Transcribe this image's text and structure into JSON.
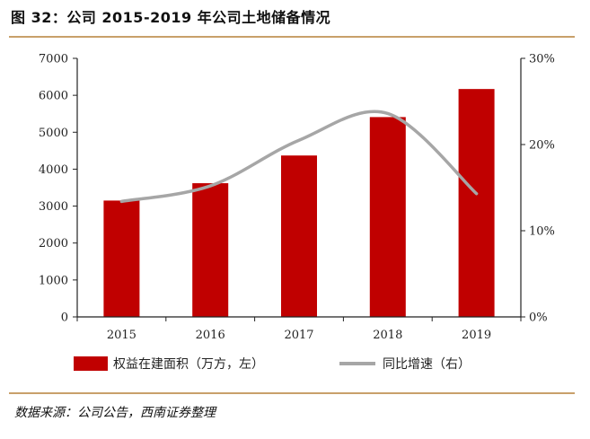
{
  "header": {
    "title": "图 32：公司 2015-2019 年公司土地储备情况"
  },
  "footer": {
    "source": "数据来源：公司公告，西南证券整理"
  },
  "colors": {
    "bar": "#c00000",
    "line": "#a6a6a6",
    "rule": "#c8a06a"
  },
  "chart_data": {
    "type": "bar",
    "title": "",
    "categories": [
      "2015",
      "2016",
      "2017",
      "2018",
      "2019"
    ],
    "series": [
      {
        "name": "权益在建面积（万方，左）",
        "type": "bar",
        "axis": "left",
        "values": [
          3150,
          3620,
          4370,
          5410,
          6170
        ]
      },
      {
        "name": "同比增速（右）",
        "type": "line",
        "axis": "right",
        "values": [
          13.4,
          15.2,
          20.5,
          23.6,
          14.3
        ]
      }
    ],
    "y_left": {
      "ylim": [
        0,
        7000
      ],
      "ticks": [
        "0",
        "1000",
        "2000",
        "3000",
        "4000",
        "5000",
        "6000",
        "7000"
      ]
    },
    "y_right": {
      "ylim": [
        0,
        30
      ],
      "ticks": [
        "0%",
        "10%",
        "20%",
        "30%"
      ]
    },
    "legend": {
      "placement": "bottom"
    },
    "grid": false
  }
}
